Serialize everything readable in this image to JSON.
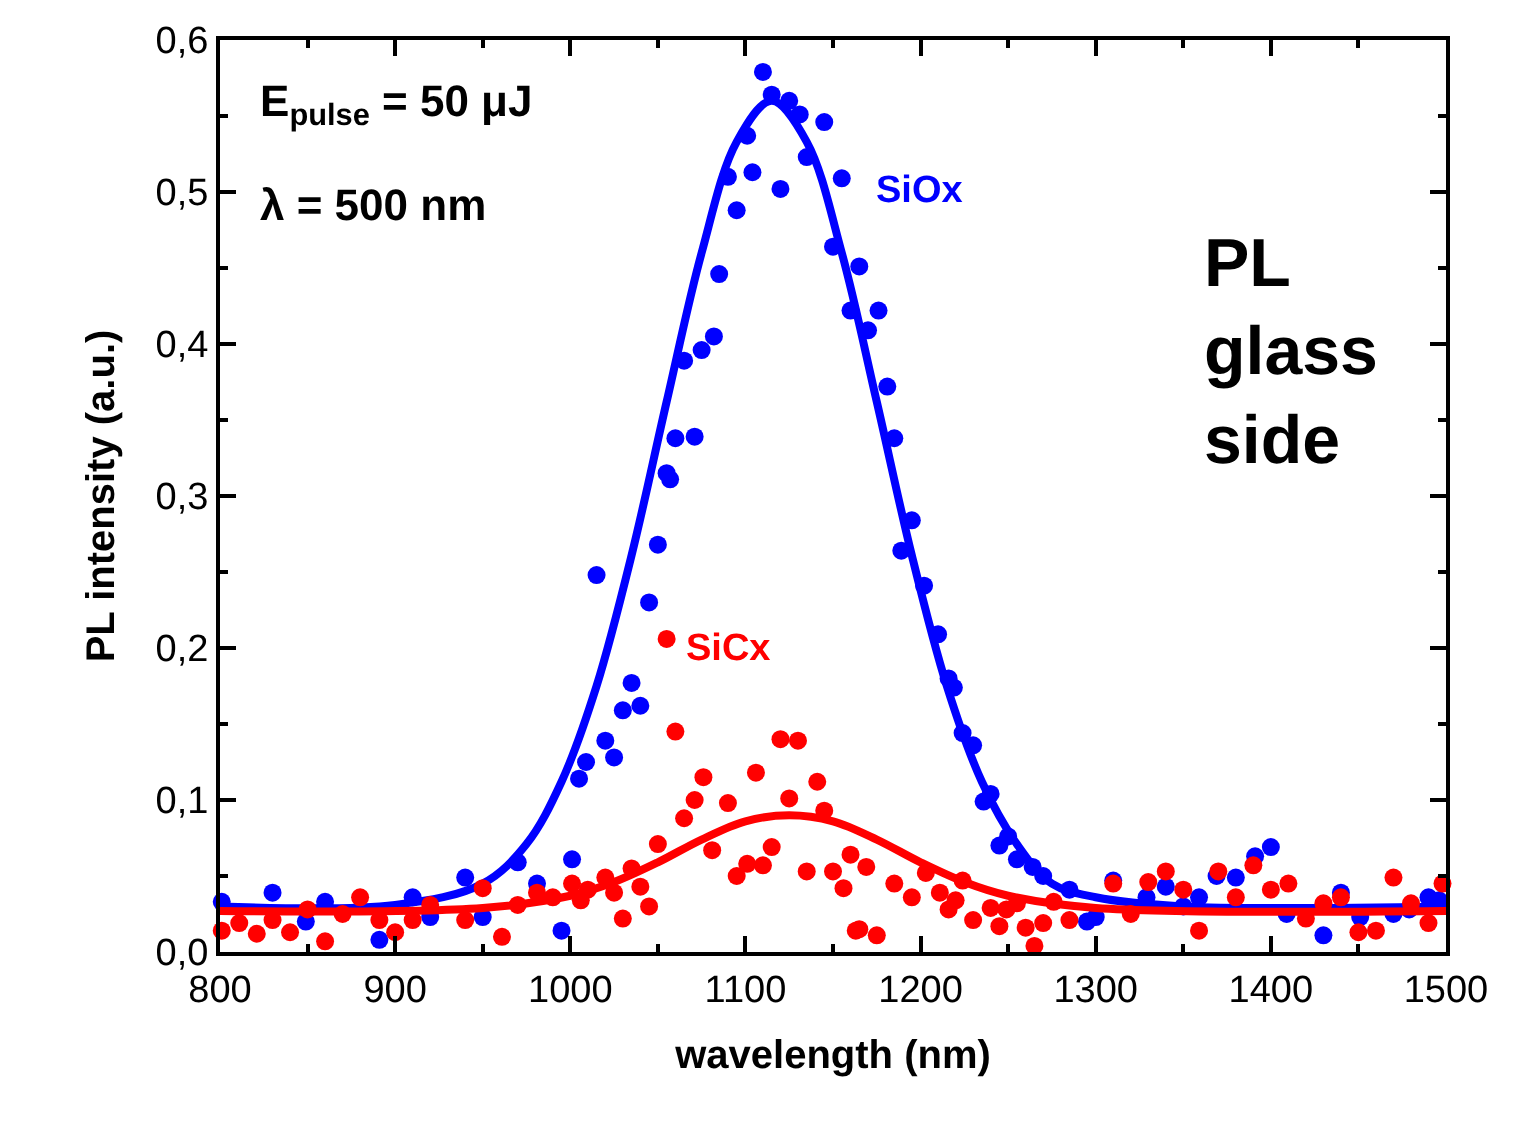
{
  "chart_data": {
    "type": "scatter",
    "xlabel": "wavelength (nm)",
    "ylabel": "PL intensity (a.u.)",
    "xlim": [
      800,
      1500
    ],
    "xticks": [
      800,
      900,
      1000,
      1100,
      1200,
      1300,
      1400,
      1500
    ],
    "ylim": [
      0,
      0.6
    ],
    "yticks": [
      {
        "value": 0,
        "label": "0,0"
      },
      {
        "value": 0.1,
        "label": "0,1"
      },
      {
        "value": 0.2,
        "label": "0,2"
      },
      {
        "value": 0.3,
        "label": "0,3"
      },
      {
        "value": 0.4,
        "label": "0,4"
      },
      {
        "value": 0.5,
        "label": "0,5"
      },
      {
        "value": 0.6,
        "label": "0,6"
      }
    ],
    "marker": "circle",
    "annotations": [
      "E$_{pulse}$ = 50 μJ",
      "λ = 500 nm",
      "PL glass side"
    ],
    "series": [
      {
        "name": "SiOx",
        "color": "#0000ff",
        "x": [
          801,
          830,
          849,
          860,
          891,
          910,
          920,
          940,
          950,
          970,
          981,
          995,
          1001,
          1005,
          1009,
          1015,
          1020,
          1025,
          1030,
          1035,
          1040,
          1045,
          1050,
          1055,
          1057,
          1060,
          1071,
          1065,
          1075,
          1082,
          1085,
          1090,
          1095,
          1101,
          1104,
          1110,
          1115,
          1120,
          1125,
          1131,
          1135,
          1145,
          1150,
          1155,
          1160,
          1165,
          1170,
          1176,
          1181,
          1185,
          1189,
          1195,
          1202,
          1210,
          1216,
          1219,
          1224,
          1230,
          1236,
          1240,
          1245,
          1250,
          1255,
          1264,
          1270,
          1285,
          1295,
          1300,
          1310,
          1329,
          1340,
          1350,
          1359,
          1369,
          1380,
          1391,
          1400,
          1409,
          1430,
          1440,
          1451,
          1470,
          1479,
          1490,
          1496
        ],
        "values": [
          0.033,
          0.039,
          0.02,
          0.033,
          0.008,
          0.036,
          0.023,
          0.049,
          0.023,
          0.059,
          0.045,
          0.014,
          0.061,
          0.114,
          0.125,
          0.248,
          0.139,
          0.128,
          0.159,
          0.177,
          0.162,
          0.23,
          0.268,
          0.315,
          0.311,
          0.338,
          0.339,
          0.389,
          0.396,
          0.405,
          0.446,
          0.51,
          0.488,
          0.537,
          0.513,
          0.579,
          0.564,
          0.502,
          0.56,
          0.551,
          0.523,
          0.546,
          0.464,
          0.509,
          0.422,
          0.451,
          0.409,
          0.422,
          0.372,
          0.338,
          0.264,
          0.284,
          0.241,
          0.209,
          0.18,
          0.174,
          0.144,
          0.136,
          0.099,
          0.104,
          0.07,
          0.076,
          0.061,
          0.056,
          0.05,
          0.041,
          0.02,
          0.023,
          0.047,
          0.036,
          0.043,
          0.03,
          0.036,
          0.05,
          0.049,
          0.063,
          0.069,
          0.025,
          0.011,
          0.039,
          0.023,
          0.025,
          0.028,
          0.036,
          0.034
        ]
      },
      {
        "type": "line",
        "marker": "none",
        "color": "#0000ff",
        "x": [
          800,
          900,
          950,
          975,
          995,
          1015,
          1035,
          1055,
          1075,
          1095,
          1115,
          1135,
          1155,
          1175,
          1195,
          1215,
          1235,
          1255,
          1275,
          1300,
          1350,
          1500
        ],
        "values": [
          0.03,
          0.031,
          0.045,
          0.071,
          0.112,
          0.175,
          0.261,
          0.362,
          0.46,
          0.533,
          0.56,
          0.533,
          0.46,
          0.362,
          0.261,
          0.175,
          0.112,
          0.071,
          0.045,
          0.036,
          0.03,
          0.03
        ]
      },
      {
        "name": "SiCx",
        "color": "#ff0000",
        "x": [
          801,
          811,
          821,
          830,
          840,
          850,
          860,
          870,
          880,
          891,
          900,
          910,
          920,
          940,
          950,
          961,
          970,
          981,
          990,
          1001,
          1006,
          1010,
          1020,
          1025,
          1030,
          1035,
          1040,
          1045,
          1050,
          1055,
          1060,
          1065,
          1071,
          1076,
          1081,
          1090,
          1095,
          1101,
          1106,
          1110,
          1115,
          1120,
          1125,
          1130,
          1135,
          1141,
          1145,
          1150,
          1156,
          1160,
          1163,
          1165,
          1169,
          1175,
          1185,
          1195,
          1203,
          1211,
          1216,
          1220,
          1224,
          1230,
          1240,
          1245,
          1249,
          1255,
          1260,
          1265,
          1270,
          1276,
          1285,
          1310,
          1320,
          1330,
          1340,
          1350,
          1359,
          1370,
          1380,
          1390,
          1400,
          1410,
          1420,
          1430,
          1440,
          1450,
          1460,
          1470,
          1480,
          1490,
          1498
        ],
        "values": [
          0.014,
          0.019,
          0.012,
          0.021,
          0.013,
          0.028,
          0.007,
          0.025,
          0.036,
          0.021,
          0.013,
          0.021,
          0.031,
          0.021,
          0.042,
          0.01,
          0.031,
          0.039,
          0.036,
          0.045,
          0.034,
          0.041,
          0.049,
          0.039,
          0.022,
          0.055,
          0.043,
          0.03,
          0.071,
          0.206,
          0.145,
          0.088,
          0.1,
          0.115,
          0.067,
          0.098,
          0.05,
          0.058,
          0.118,
          0.057,
          0.069,
          0.14,
          0.101,
          0.139,
          0.053,
          0.112,
          0.093,
          0.053,
          0.042,
          0.064,
          0.014,
          0.015,
          0.056,
          0.011,
          0.045,
          0.036,
          0.052,
          0.039,
          0.028,
          0.034,
          0.047,
          0.021,
          0.029,
          0.017,
          0.028,
          0.032,
          0.016,
          0.004,
          0.019,
          0.033,
          0.021,
          0.045,
          0.025,
          0.046,
          0.053,
          0.041,
          0.014,
          0.053,
          0.036,
          0.057,
          0.041,
          0.045,
          0.022,
          0.032,
          0.036,
          0.013,
          0.014,
          0.049,
          0.032,
          0.019,
          0.045
        ]
      },
      {
        "type": "line",
        "marker": "none",
        "color": "#ff0000",
        "x": [
          800,
          950,
          1000,
          1025,
          1050,
          1075,
          1100,
          1125,
          1150,
          1175,
          1200,
          1225,
          1250,
          1300,
          1500
        ],
        "values": [
          0.027,
          0.029,
          0.037,
          0.046,
          0.059,
          0.074,
          0.086,
          0.09,
          0.086,
          0.074,
          0.059,
          0.046,
          0.037,
          0.029,
          0.027
        ]
      }
    ]
  }
}
